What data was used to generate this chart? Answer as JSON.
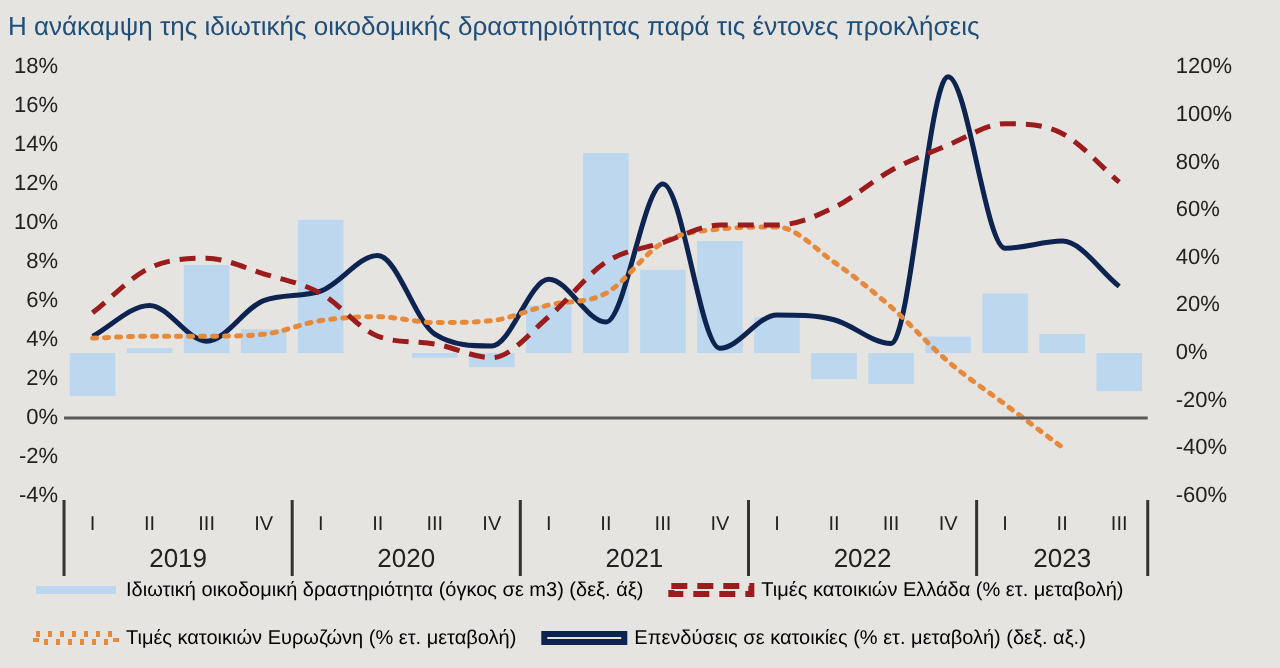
{
  "chart_data": {
    "type": "bar",
    "title": "Η ανάκαμψη της ιδιωτικής οικοδομικής δραστηριότητας παρά τις έντονες προκλήσεις",
    "categories": [
      "I",
      "II",
      "III",
      "IV",
      "I",
      "II",
      "III",
      "IV",
      "I",
      "II",
      "III",
      "IV",
      "I",
      "II",
      "III",
      "IV",
      "I",
      "II",
      "III"
    ],
    "annotations": [
      "2019",
      "2020",
      "2021",
      "2022",
      "2023"
    ],
    "series": [
      {
        "name": "Ιδιωτική οικοδομική δραστηριότητα (όγκος σε m3) (δεξ. άξ)",
        "axis": "y2",
        "color": "#bdd7ee",
        "values": [
          -18,
          2,
          37,
          10,
          56,
          0,
          -2,
          -6,
          20,
          84,
          35,
          47,
          15,
          -11,
          -13,
          7,
          25,
          8,
          -16
        ]
      },
      {
        "name": "Τιμές κατοικιών Ελλάδα (% ετ. μεταβολή)",
        "type": "line",
        "line_style": "dashed",
        "color": "#9b1c1c",
        "values": [
          5.4,
          7.7,
          8.2,
          7.4,
          6.4,
          4.2,
          3.8,
          3.1,
          5.2,
          8.0,
          9.0,
          9.9,
          9.9,
          10.8,
          12.7,
          14.0,
          15.1,
          14.6,
          12.1
        ]
      },
      {
        "name": "Τιμές κατοικιών Ευρωζώνη (% ετ. μεταβολή)",
        "type": "line",
        "line_style": "dotted",
        "color": "#e6893a",
        "values": [
          4.1,
          4.2,
          4.2,
          4.3,
          5.0,
          5.2,
          4.9,
          5.0,
          5.8,
          6.4,
          9.0,
          9.7,
          9.8,
          8.0,
          5.7,
          2.9,
          0.7,
          -1.5,
          null
        ]
      },
      {
        "name": "Επενδύσεις σε κατοικίες (% ετ. μεταβολή) (δεξ. αξ.)",
        "type": "line",
        "line_style": "solid",
        "axis": "y2",
        "color": "#0d2350",
        "values": [
          7,
          20,
          5,
          22,
          26,
          41,
          8,
          3,
          31,
          13,
          71,
          2,
          16,
          14,
          4,
          116,
          44,
          47,
          28
        ]
      }
    ],
    "ylim": [
      -4,
      18
    ],
    "yticks": [
      {
        "value": -4,
        "label": "-4%"
      },
      {
        "value": -2,
        "label": "-2%"
      },
      {
        "value": 0,
        "label": "0%"
      },
      {
        "value": 2,
        "label": "2%"
      },
      {
        "value": 4,
        "label": "4%"
      },
      {
        "value": 6,
        "label": "6%"
      },
      {
        "value": 8,
        "label": "8%"
      },
      {
        "value": 10,
        "label": "10%"
      },
      {
        "value": 12,
        "label": "12%"
      },
      {
        "value": 14,
        "label": "14%"
      },
      {
        "value": 16,
        "label": "16%"
      },
      {
        "value": 18,
        "label": "18%"
      }
    ],
    "y2lim": [
      -60,
      120
    ],
    "y2ticks": [
      {
        "value": -60,
        "label": "-60%"
      },
      {
        "value": -40,
        "label": "-40%"
      },
      {
        "value": -20,
        "label": "-20%"
      },
      {
        "value": 0,
        "label": "0%"
      },
      {
        "value": 20,
        "label": "20%"
      },
      {
        "value": 40,
        "label": "40%"
      },
      {
        "value": 60,
        "label": "60%"
      },
      {
        "value": 80,
        "label": "80%"
      },
      {
        "value": 100,
        "label": "100%"
      },
      {
        "value": 120,
        "label": "120%"
      }
    ],
    "ref_lines": [
      {
        "axis": "y",
        "value": 0,
        "color": "#595959"
      }
    ],
    "grid": false,
    "legend": "bottom",
    "marker": "none"
  }
}
